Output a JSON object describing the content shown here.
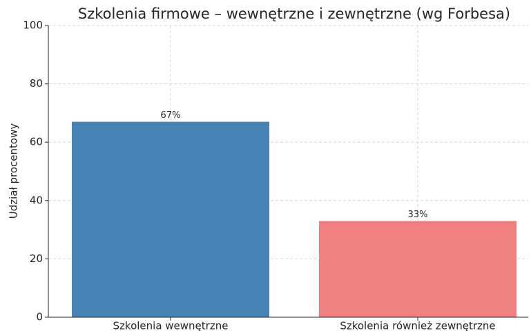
{
  "chart_data": {
    "type": "bar",
    "title": "Szkolenia firmowe – wewnętrzne i zewnętrzne (wg Forbesa)",
    "y_label": "Udział procentowy",
    "categories": [
      "Szkolenia wewnętrzne",
      "Szkolenia również zewnętrzne"
    ],
    "values": [
      67,
      33
    ],
    "value_labels": [
      "67%",
      "33%"
    ],
    "colors": [
      "#4682b4",
      "#f08080"
    ],
    "ylim": [
      0,
      100
    ],
    "yticks": [
      0,
      20,
      40,
      60,
      80,
      100
    ],
    "grid": true
  }
}
